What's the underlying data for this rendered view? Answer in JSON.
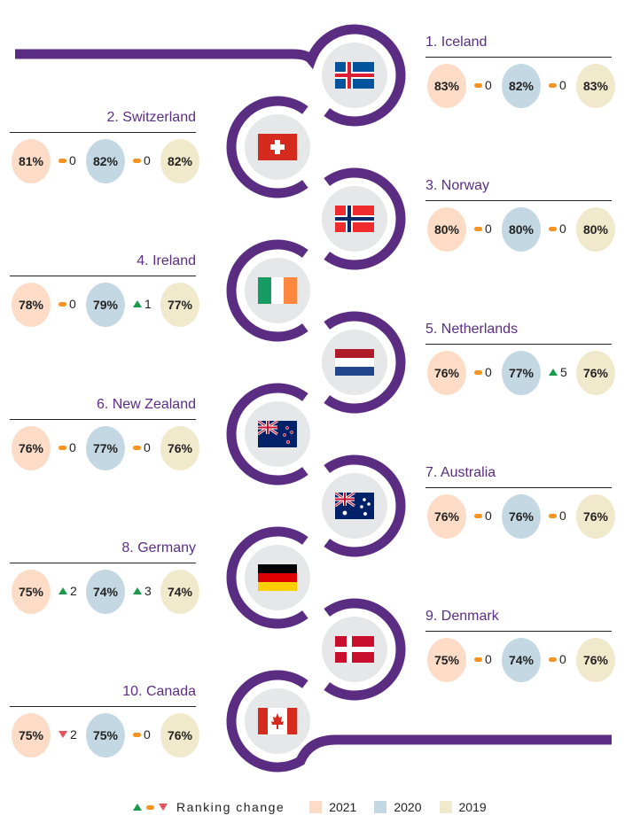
{
  "colors": {
    "purple": "#5b2d82",
    "c2021": "#fcdcc6",
    "c2020": "#c4d8e3",
    "c2019": "#f1e9cb",
    "up": "#1a9b4b",
    "same": "#f7931e",
    "down": "#e5545a",
    "flag_bg": "#e6e7e9"
  },
  "countries": [
    {
      "rank_name": "1. Iceland",
      "flag": "iceland-flag",
      "v2021": "83%",
      "c1": {
        "dir": "same",
        "n": "0"
      },
      "v2020": "82%",
      "c2": {
        "dir": "same",
        "n": "0"
      },
      "v2019": "83%"
    },
    {
      "rank_name": "2. Switzerland",
      "flag": "switzerland-flag",
      "v2021": "81%",
      "c1": {
        "dir": "same",
        "n": "0"
      },
      "v2020": "82%",
      "c2": {
        "dir": "same",
        "n": "0"
      },
      "v2019": "82%"
    },
    {
      "rank_name": "3. Norway",
      "flag": "norway-flag",
      "v2021": "80%",
      "c1": {
        "dir": "same",
        "n": "0"
      },
      "v2020": "80%",
      "c2": {
        "dir": "same",
        "n": "0"
      },
      "v2019": "80%"
    },
    {
      "rank_name": "4. Ireland",
      "flag": "ireland-flag",
      "v2021": "78%",
      "c1": {
        "dir": "same",
        "n": "0"
      },
      "v2020": "79%",
      "c2": {
        "dir": "up",
        "n": "1"
      },
      "v2019": "77%"
    },
    {
      "rank_name": "5. Netherlands",
      "flag": "netherlands-flag",
      "v2021": "76%",
      "c1": {
        "dir": "same",
        "n": "0"
      },
      "v2020": "77%",
      "c2": {
        "dir": "up",
        "n": "5"
      },
      "v2019": "76%"
    },
    {
      "rank_name": "6. New Zealand",
      "flag": "new-zealand-flag",
      "v2021": "76%",
      "c1": {
        "dir": "same",
        "n": "0"
      },
      "v2020": "77%",
      "c2": {
        "dir": "same",
        "n": "0"
      },
      "v2019": "76%"
    },
    {
      "rank_name": "7. Australia",
      "flag": "australia-flag",
      "v2021": "76%",
      "c1": {
        "dir": "same",
        "n": "0"
      },
      "v2020": "76%",
      "c2": {
        "dir": "same",
        "n": "0"
      },
      "v2019": "76%"
    },
    {
      "rank_name": "8. Germany",
      "flag": "germany-flag",
      "v2021": "75%",
      "c1": {
        "dir": "up",
        "n": "2"
      },
      "v2020": "74%",
      "c2": {
        "dir": "up",
        "n": "3"
      },
      "v2019": "74%"
    },
    {
      "rank_name": "9. Denmark",
      "flag": "denmark-flag",
      "v2021": "75%",
      "c1": {
        "dir": "same",
        "n": "0"
      },
      "v2020": "74%",
      "c2": {
        "dir": "same",
        "n": "0"
      },
      "v2019": "76%"
    },
    {
      "rank_name": "10. Canada",
      "flag": "canada-flag",
      "v2021": "75%",
      "c1": {
        "dir": "down",
        "n": "2"
      },
      "v2020": "75%",
      "c2": {
        "dir": "same",
        "n": "0"
      },
      "v2019": "76%"
    }
  ],
  "legend": {
    "label": "Ranking change",
    "y2021": "2021",
    "y2020": "2020",
    "y2019": "2019"
  }
}
